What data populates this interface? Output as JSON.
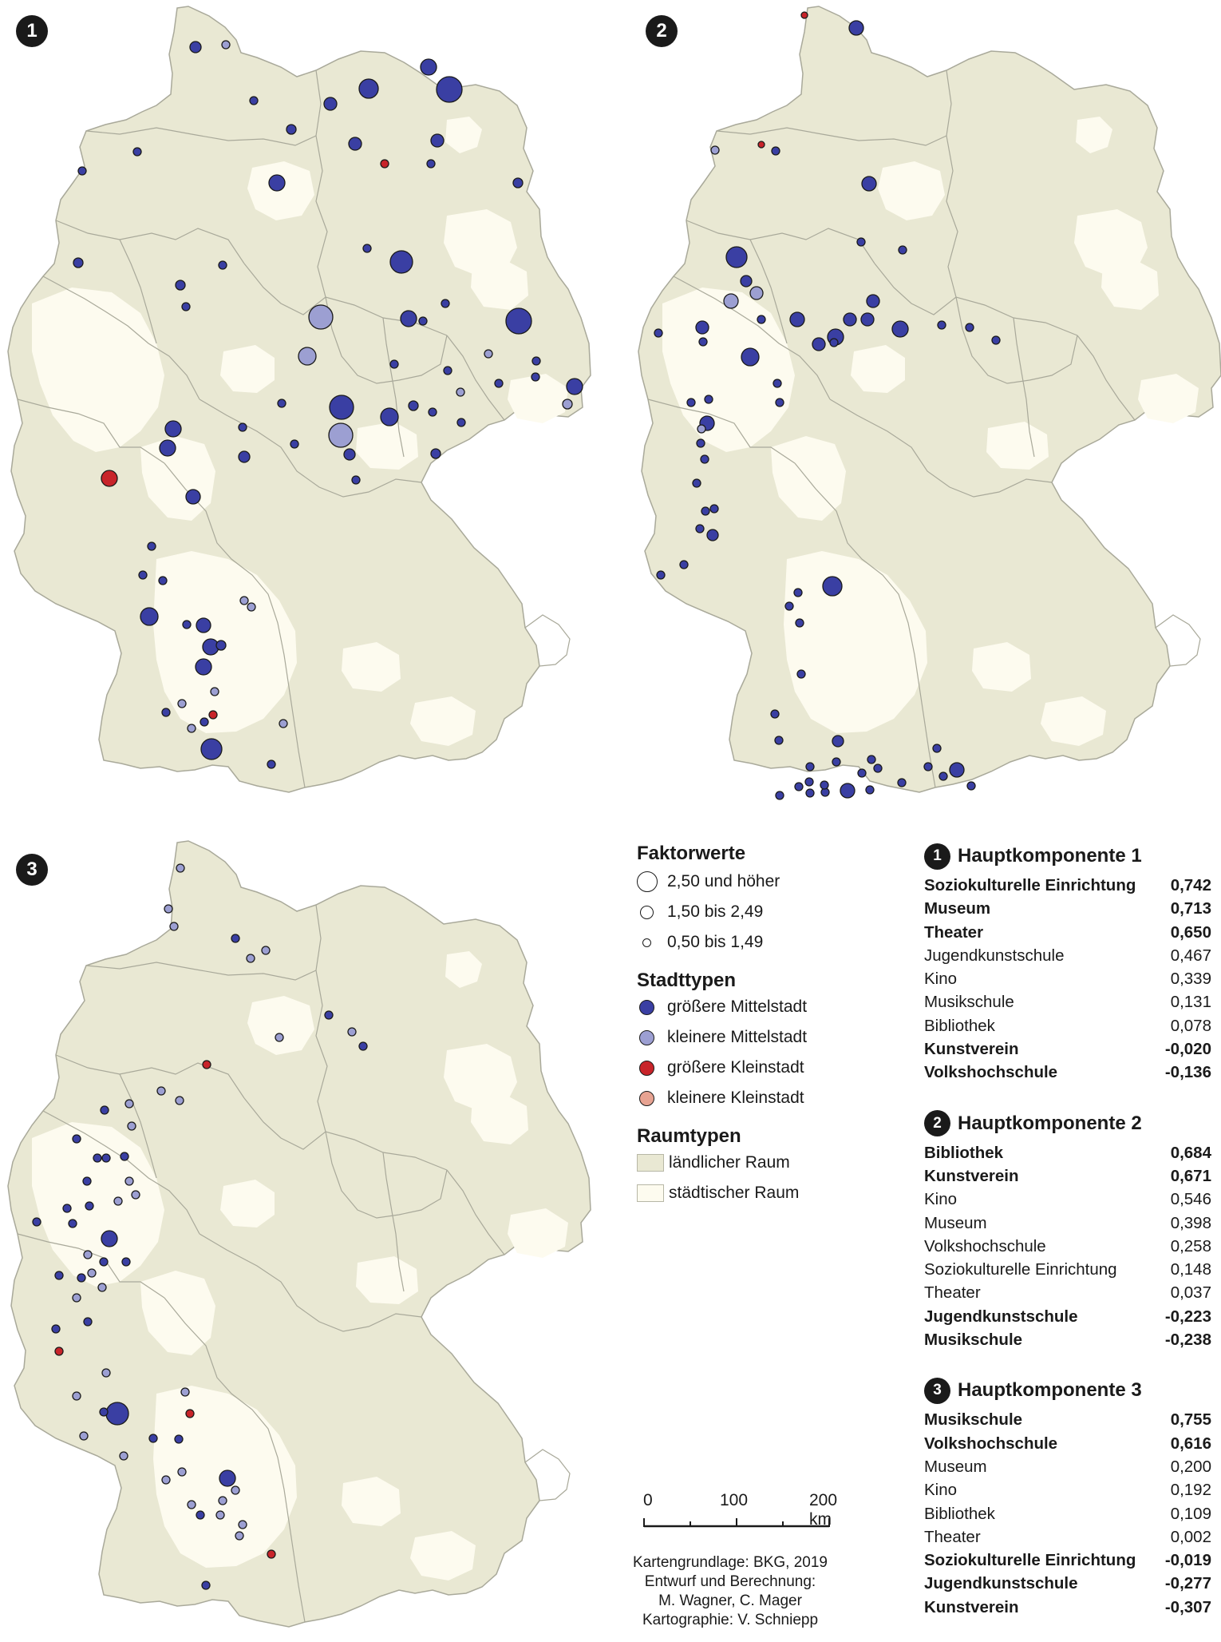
{
  "colors": {
    "rural": "#e9e8d3",
    "urban": "#fdfbef",
    "border": "#a9a99a",
    "groessere_mittelstadt": "#3a3fa3",
    "kleinere_mittelstadt": "#9c9fd2",
    "groessere_kleinstadt": "#c8242a",
    "kleinere_kleinstadt": "#e7a392"
  },
  "maps": [
    {
      "badge": "1"
    },
    {
      "badge": "2"
    },
    {
      "badge": "3"
    }
  ],
  "legend": {
    "faktor_title": "Faktorwerte",
    "faktor_items": [
      "2,50 und höher",
      "1,50 bis 2,49",
      "0,50 bis 1,49"
    ],
    "stadt_title": "Stadttypen",
    "stadt_items": [
      "größere Mittelstadt",
      "kleinere Mittelstadt",
      "größere Kleinstadt",
      "kleinere Kleinstadt"
    ],
    "raum_title": "Raumtypen",
    "raum_items": [
      "ländlicher Raum",
      "städtischer Raum"
    ]
  },
  "components": [
    {
      "badge": "1",
      "title": "Hauptkomponente 1",
      "rows": [
        {
          "label": "Soziokulturelle Einrichtung",
          "value": "0,742",
          "bold": true
        },
        {
          "label": "Museum",
          "value": "0,713",
          "bold": true
        },
        {
          "label": "Theater",
          "value": "0,650",
          "bold": true
        },
        {
          "label": "Jugendkunstschule",
          "value": "0,467",
          "bold": false
        },
        {
          "label": "Kino",
          "value": "0,339",
          "bold": false
        },
        {
          "label": "Musikschule",
          "value": "0,131",
          "bold": false
        },
        {
          "label": "Bibliothek",
          "value": "0,078",
          "bold": false
        },
        {
          "label": "Kunstverein",
          "value": "-0,020",
          "bold": true
        },
        {
          "label": "Volkshochschule",
          "value": "-0,136",
          "bold": true
        }
      ]
    },
    {
      "badge": "2",
      "title": "Hauptkomponente 2",
      "rows": [
        {
          "label": "Bibliothek",
          "value": "0,684",
          "bold": true
        },
        {
          "label": "Kunstverein",
          "value": "0,671",
          "bold": true
        },
        {
          "label": "Kino",
          "value": "0,546",
          "bold": false
        },
        {
          "label": "Museum",
          "value": "0,398",
          "bold": false
        },
        {
          "label": "Volkshochschule",
          "value": "0,258",
          "bold": false
        },
        {
          "label": "Soziokulturelle Einrichtung",
          "value": "0,148",
          "bold": false
        },
        {
          "label": "Theater",
          "value": "0,037",
          "bold": false
        },
        {
          "label": "Jugendkunstschule",
          "value": "-0,223",
          "bold": true
        },
        {
          "label": "Musikschule",
          "value": "-0,238",
          "bold": true
        }
      ]
    },
    {
      "badge": "3",
      "title": "Hauptkomponente 3",
      "rows": [
        {
          "label": "Musikschule",
          "value": "0,755",
          "bold": true
        },
        {
          "label": "Volkshochschule",
          "value": "0,616",
          "bold": true
        },
        {
          "label": "Museum",
          "value": "0,200",
          "bold": false
        },
        {
          "label": "Kino",
          "value": "0,192",
          "bold": false
        },
        {
          "label": "Bibliothek",
          "value": "0,109",
          "bold": false
        },
        {
          "label": "Theater",
          "value": "0,002",
          "bold": false
        },
        {
          "label": "Soziokulturelle Einrichtung",
          "value": "-0,019",
          "bold": true
        },
        {
          "label": "Jugendkunstschule",
          "value": "-0,277",
          "bold": true
        },
        {
          "label": "Kunstverein",
          "value": "-0,307",
          "bold": true
        }
      ]
    }
  ],
  "scale": {
    "labels": [
      "0",
      "100",
      "200 km"
    ]
  },
  "credits": [
    "Kartengrundlage: BKG, 2019",
    "Entwurf und Berechnung:",
    "M. Wagner, C. Mager",
    "Kartographie: V. Schniepp"
  ]
}
